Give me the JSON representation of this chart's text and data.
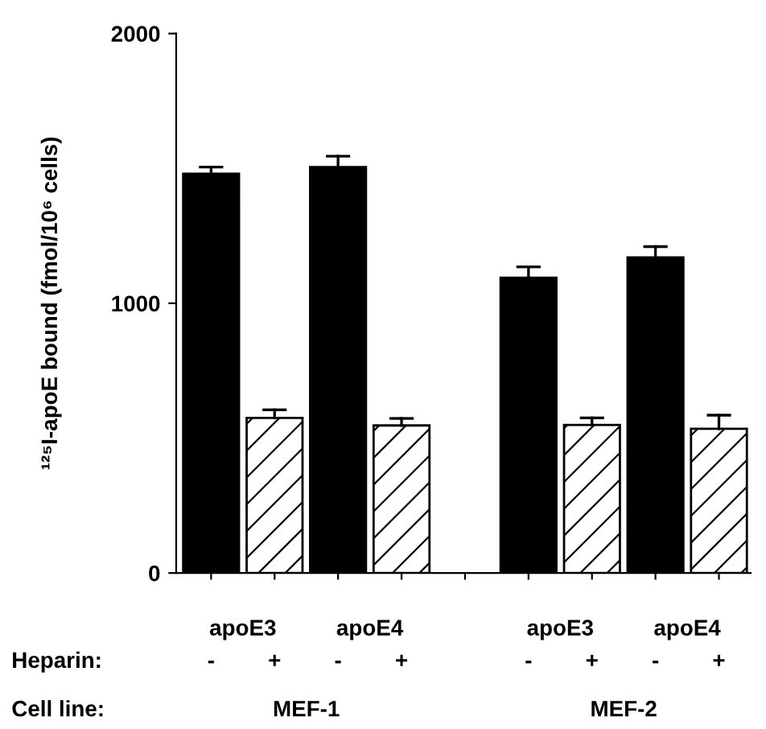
{
  "chart_data": {
    "type": "bar",
    "ylabel": "¹²⁵I-apoE bound (fmol/10⁶ cells)",
    "categories": [
      "-",
      "+",
      "-",
      "+",
      null,
      "-",
      "+",
      "-",
      "+"
    ],
    "values": [
      1480,
      575,
      1505,
      547,
      null,
      1095,
      549,
      1170,
      535
    ],
    "errors": [
      [
        1480,
        1505
      ],
      [
        575,
        605
      ],
      [
        1505,
        1545
      ],
      [
        547,
        573
      ],
      null,
      [
        1095,
        1135
      ],
      [
        549,
        575
      ],
      [
        1170,
        1210
      ],
      [
        535,
        585
      ]
    ],
    "colors": [
      "#000000",
      "#ffffff",
      "#000000",
      "#ffffff",
      "#ffffff",
      "#000000",
      "#ffffff",
      "#000000",
      "#ffffff"
    ],
    "ylim": [
      0,
      2000
    ],
    "yticks": [
      0,
      1000,
      2000
    ],
    "grid": false,
    "annotations": [
      "apoE3",
      "apoE4",
      "apoE3",
      "apoE4",
      "Heparin:",
      "Cell line:",
      "MEF-1",
      "MEF-2"
    ]
  }
}
